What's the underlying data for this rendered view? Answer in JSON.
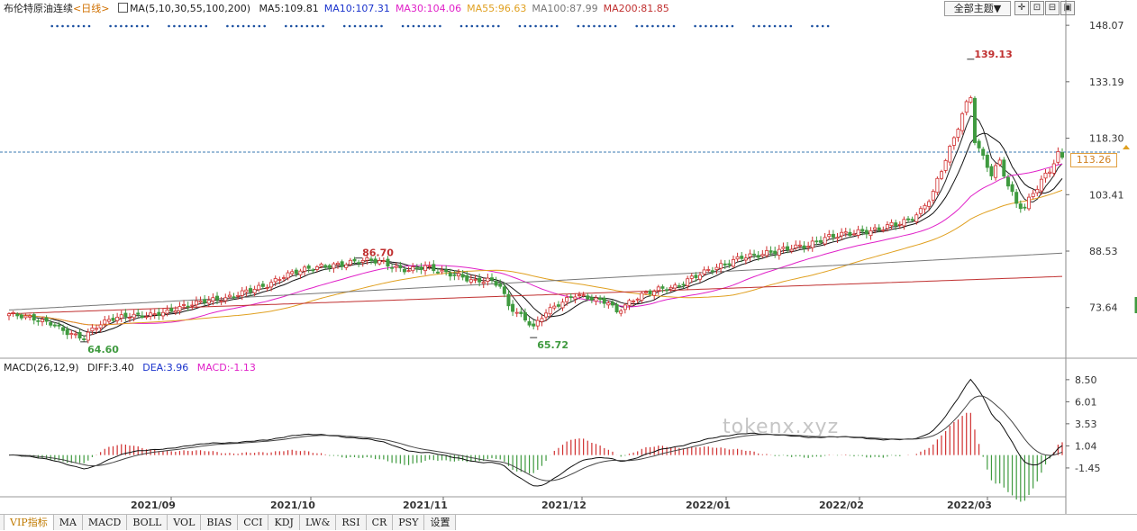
{
  "header": {
    "title": "布伦特原油连续",
    "period": "<日线>",
    "ma_params": "MA(5,10,30,55,100,200)",
    "ma_values": [
      {
        "label": "MA5:109.81",
        "color": "#222222"
      },
      {
        "label": "MA10:107.31",
        "color": "#1a33cc"
      },
      {
        "label": "MA30:104.06",
        "color": "#e020c8"
      },
      {
        "label": "MA55:96.63",
        "color": "#e0a020"
      },
      {
        "label": "MA100:87.99",
        "color": "#777777"
      },
      {
        "label": "MA200:81.85",
        "color": "#c03030"
      }
    ]
  },
  "toolbar": {
    "theme_label": "全部主题▼",
    "buttons": [
      {
        "name": "crosshair-icon",
        "glyph": "✛"
      },
      {
        "name": "zoom-in-icon",
        "glyph": "⊡"
      },
      {
        "name": "zoom-out-icon",
        "glyph": "⊟"
      },
      {
        "name": "scroll-icon",
        "glyph": "▣"
      }
    ]
  },
  "macd_header": {
    "params": "MACD(26,12,9)",
    "diff": "DIFF:3.40",
    "dea": "DEA:3.96",
    "macd": "MACD:-1.13"
  },
  "watermark": "tokenx.xyz",
  "current_price_tag": "113.26",
  "tabs": [
    "VIP指标",
    "MA",
    "MACD",
    "BOLL",
    "VOL",
    "BIAS",
    "CCI",
    "KDJ",
    "LW&",
    "RSI",
    "CR",
    "PSY",
    "设置"
  ],
  "colors": {
    "up": "#d03030",
    "down": "#3f9a3f",
    "accent": "#c07a00"
  },
  "chart_data": {
    "type": "candlestick",
    "price_axis_ticks": [
      148.07,
      133.19,
      118.3,
      103.41,
      88.53,
      73.64
    ],
    "price_ylim": [
      61,
      150
    ],
    "macd_axis_ticks": [
      8.5,
      6.01,
      3.53,
      1.04,
      -1.45
    ],
    "macd_ylim": [
      -4.5,
      9.5
    ],
    "x_tick_labels": [
      "2021/09",
      "2021/10",
      "2021/11",
      "2021/12",
      "2022/01",
      "2022/02",
      "2022/03"
    ],
    "annotations": [
      {
        "text": "139.13",
        "type": "high"
      },
      {
        "text": "86.70",
        "type": "high"
      },
      {
        "text": "64.60",
        "type": "low"
      },
      {
        "text": "65.72",
        "type": "low"
      }
    ],
    "anchors": [
      [
        0,
        72
      ],
      [
        5,
        71
      ],
      [
        10,
        69.5
      ],
      [
        14,
        67
      ],
      [
        18,
        65.5
      ],
      [
        20,
        68
      ],
      [
        24,
        70.5
      ],
      [
        28,
        71.5
      ],
      [
        33,
        71.5
      ],
      [
        38,
        72.5
      ],
      [
        42,
        74
      ],
      [
        47,
        75.5
      ],
      [
        52,
        76
      ],
      [
        57,
        78
      ],
      [
        62,
        79.5
      ],
      [
        66,
        82
      ],
      [
        70,
        83.5
      ],
      [
        75,
        84.5
      ],
      [
        80,
        85
      ],
      [
        84,
        86
      ],
      [
        87,
        86.2
      ],
      [
        90,
        85.5
      ],
      [
        93,
        84
      ],
      [
        96,
        83.5
      ],
      [
        100,
        84.5
      ],
      [
        104,
        83
      ],
      [
        108,
        82
      ],
      [
        112,
        80.5
      ],
      [
        115,
        81
      ],
      [
        118,
        79.5
      ],
      [
        120,
        74
      ],
      [
        123,
        71.5
      ],
      [
        126,
        68.5
      ],
      [
        129,
        72.5
      ],
      [
        132,
        74.5
      ],
      [
        136,
        77
      ],
      [
        140,
        76
      ],
      [
        144,
        75
      ],
      [
        146,
        72.5
      ],
      [
        149,
        75
      ],
      [
        152,
        77
      ],
      [
        156,
        78.5
      ],
      [
        160,
        79
      ],
      [
        164,
        81.5
      ],
      [
        168,
        83.5
      ],
      [
        172,
        85
      ],
      [
        176,
        87
      ],
      [
        180,
        87.5
      ],
      [
        184,
        88.5
      ],
      [
        188,
        89.5
      ],
      [
        192,
        90
      ],
      [
        196,
        92
      ],
      [
        200,
        93
      ],
      [
        204,
        93.5
      ],
      [
        208,
        94
      ],
      [
        212,
        95.5
      ],
      [
        216,
        96.5
      ],
      [
        219,
        99
      ],
      [
        222,
        104
      ],
      [
        225,
        113
      ],
      [
        227,
        118
      ],
      [
        229,
        125
      ],
      [
        231,
        129
      ],
      [
        232,
        118
      ],
      [
        234,
        113
      ],
      [
        236,
        109
      ],
      [
        238,
        112
      ],
      [
        240,
        106
      ],
      [
        242,
        101
      ],
      [
        244,
        100
      ],
      [
        246,
        104
      ],
      [
        248,
        107
      ],
      [
        250,
        110
      ],
      [
        252,
        114
      ],
      [
        253,
        113
      ]
    ],
    "series": [
      {
        "name": "MA5"
      },
      {
        "name": "MA10"
      },
      {
        "name": "MA30"
      },
      {
        "name": "MA55"
      },
      {
        "name": "MA100"
      },
      {
        "name": "MA200"
      },
      {
        "name": "DIFF"
      },
      {
        "name": "DEA"
      },
      {
        "name": "MACD"
      }
    ]
  }
}
